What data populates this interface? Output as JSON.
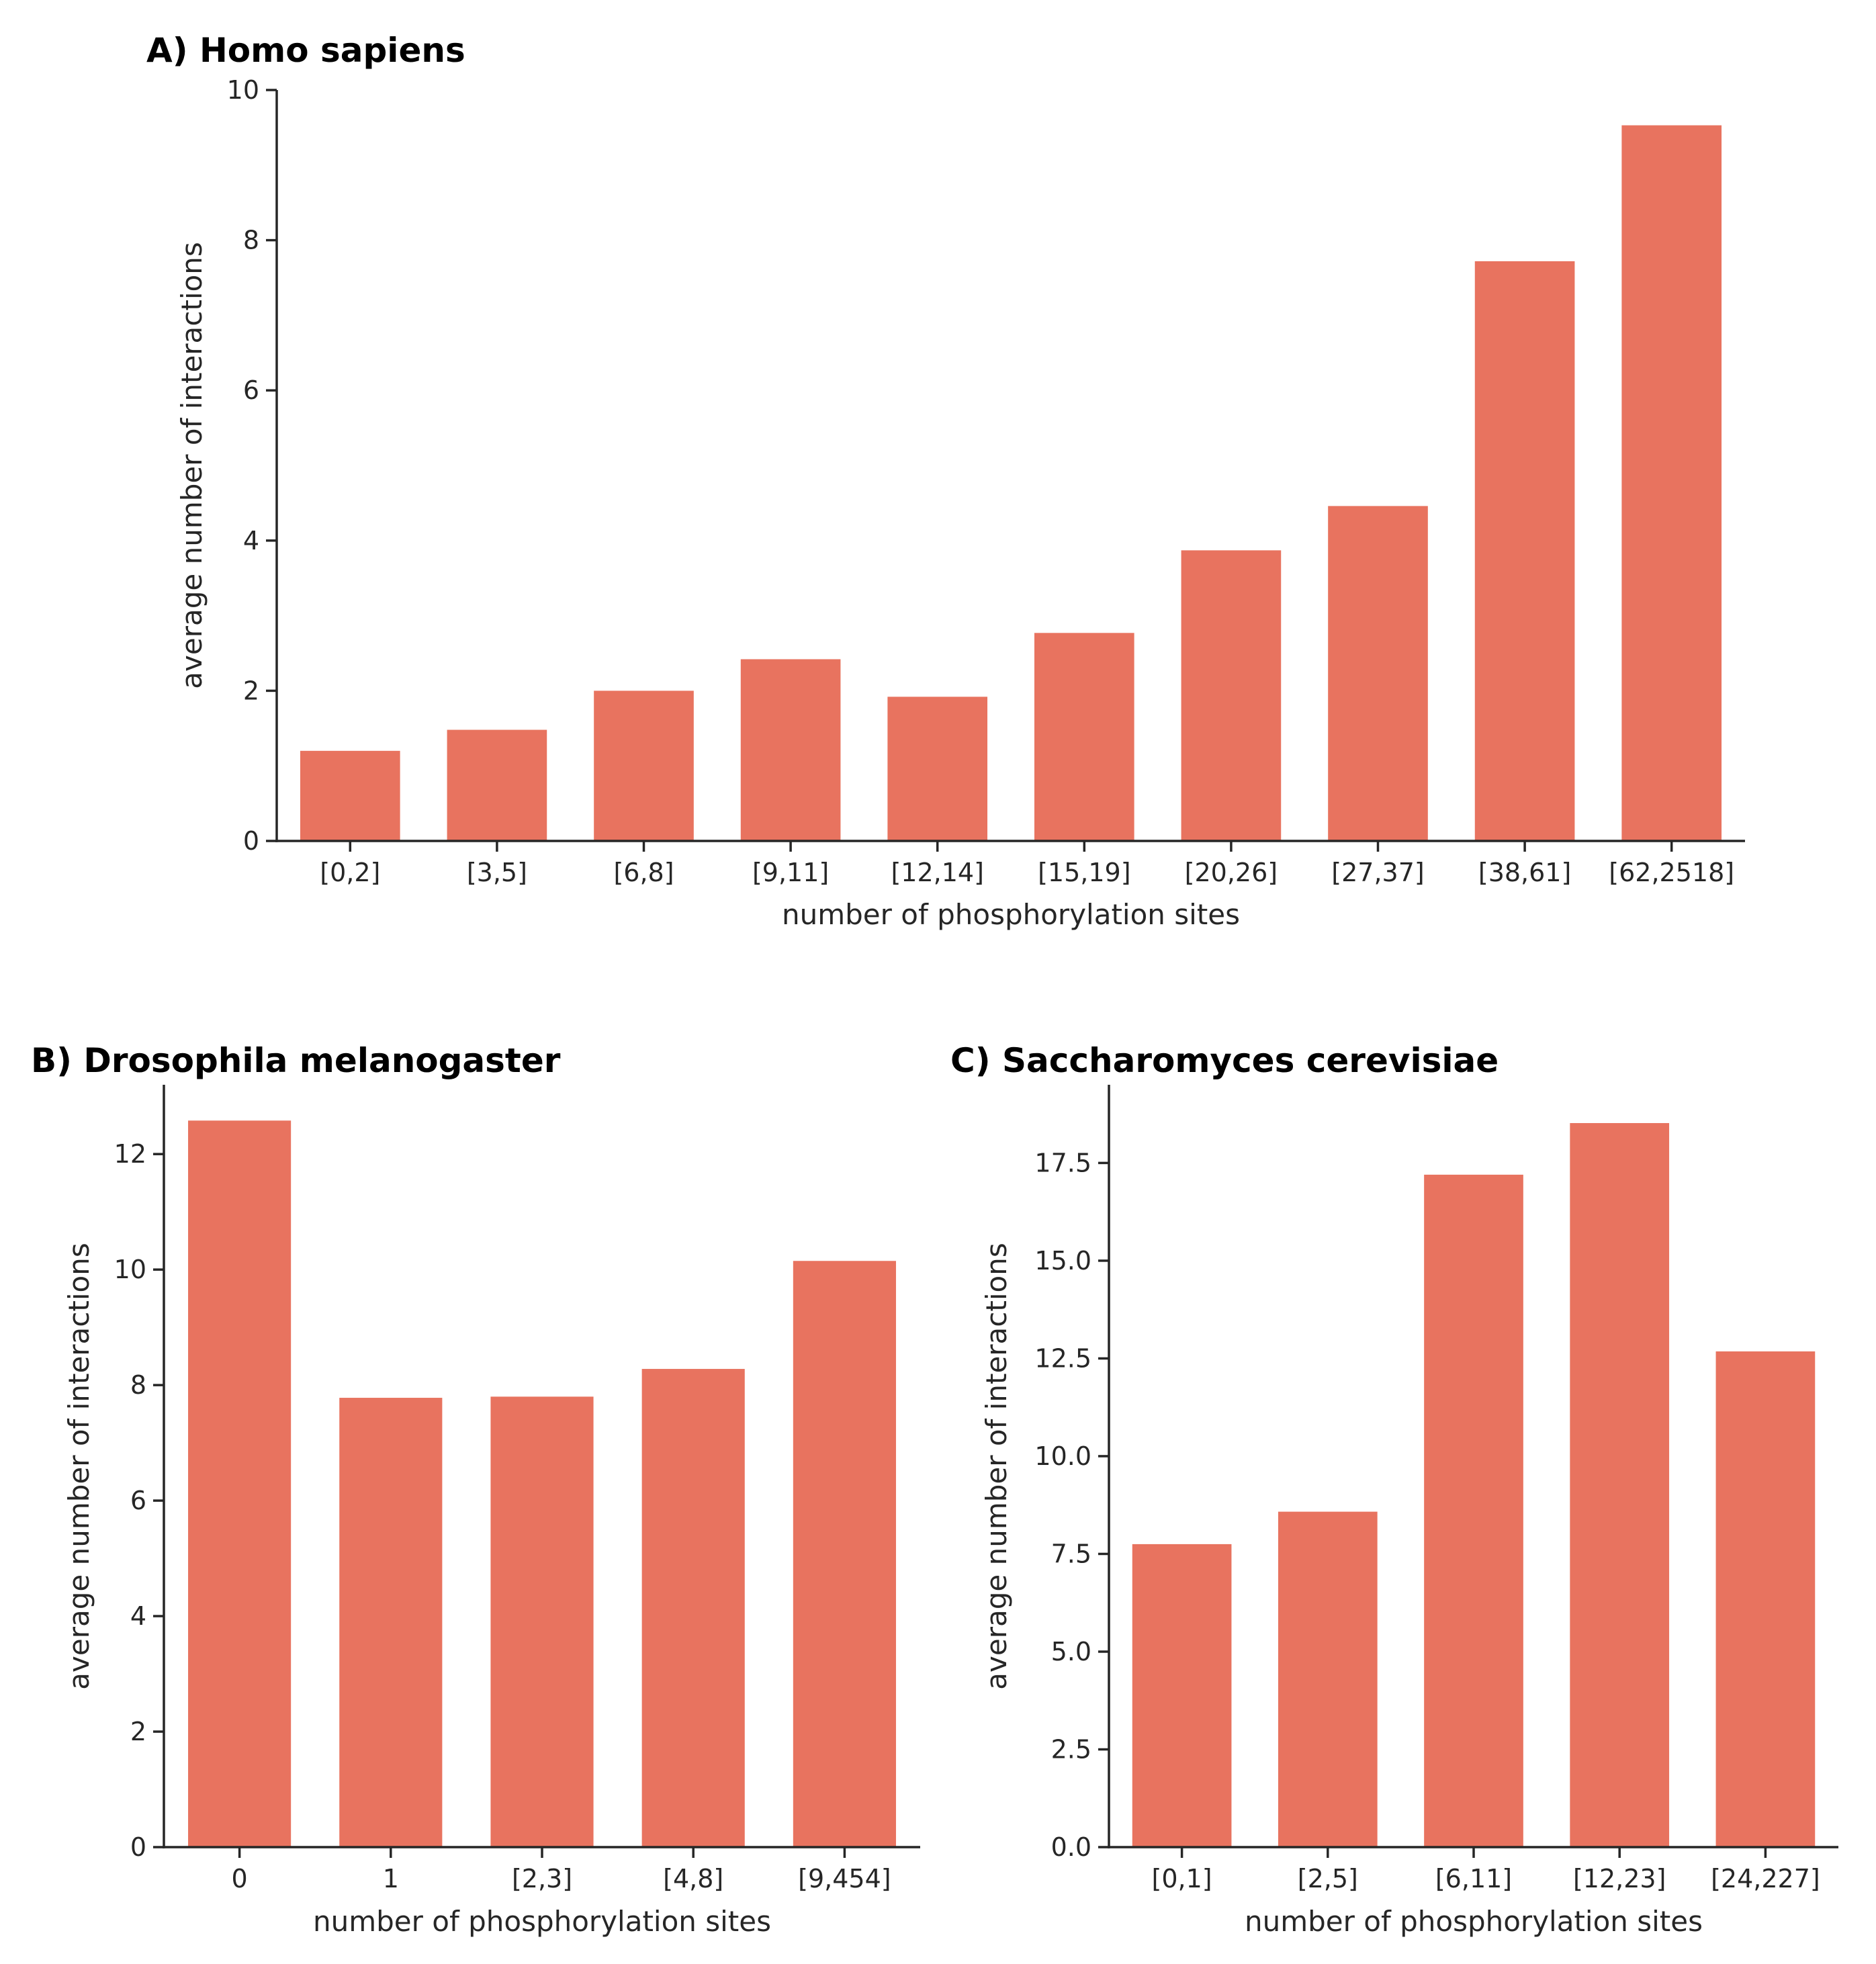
{
  "colors": {
    "bar": "#e8735f",
    "axis": "#262626",
    "title": "#000000"
  },
  "chart_data": [
    {
      "id": "A",
      "type": "bar",
      "title": "A) Homo sapiens",
      "xlabel": "number of phosphorylation sites",
      "ylabel": "average number of interactions",
      "categories": [
        "[0,2]",
        "[3,5]",
        "[6,8]",
        "[9,11]",
        "[12,14]",
        "[15,19]",
        "[20,26]",
        "[27,37]",
        "[38,61]",
        "[62,2518]"
      ],
      "values": [
        1.2,
        1.48,
        2.0,
        2.42,
        1.92,
        2.77,
        3.87,
        4.46,
        7.72,
        9.53
      ],
      "ylim": [
        0,
        10
      ],
      "yticks": [
        0,
        2,
        4,
        6,
        8,
        10
      ],
      "ytick_labels": [
        "0",
        "2",
        "4",
        "6",
        "8",
        "10"
      ]
    },
    {
      "id": "B",
      "type": "bar",
      "title": "B) Drosophila melanogaster",
      "xlabel": "number of phosphorylation sites",
      "ylabel": "average number of interactions",
      "categories": [
        "0",
        "1",
        "[2,3]",
        "[4,8]",
        "[9,454]"
      ],
      "values": [
        12.58,
        7.78,
        7.8,
        8.28,
        10.15
      ],
      "ylim": [
        0,
        13.2
      ],
      "yticks": [
        0,
        2,
        4,
        6,
        8,
        10,
        12
      ],
      "ytick_labels": [
        "0",
        "2",
        "4",
        "6",
        "8",
        "10",
        "12"
      ]
    },
    {
      "id": "C",
      "type": "bar",
      "title": "C) Saccharomyces cerevisiae",
      "xlabel": "number of phosphorylation sites",
      "ylabel": "average number of interactions",
      "categories": [
        "[0,1]",
        "[2,5]",
        "[6,11]",
        "[12,23]",
        "[24,227]"
      ],
      "values": [
        7.75,
        8.58,
        17.2,
        18.52,
        12.68
      ],
      "ylim": [
        0,
        19.5
      ],
      "yticks": [
        0,
        2.5,
        5,
        7.5,
        10,
        12.5,
        15,
        17.5
      ],
      "ytick_labels": [
        "0.0",
        "2.5",
        "5.0",
        "7.5",
        "10.0",
        "12.5",
        "15.0",
        "17.5"
      ]
    }
  ]
}
